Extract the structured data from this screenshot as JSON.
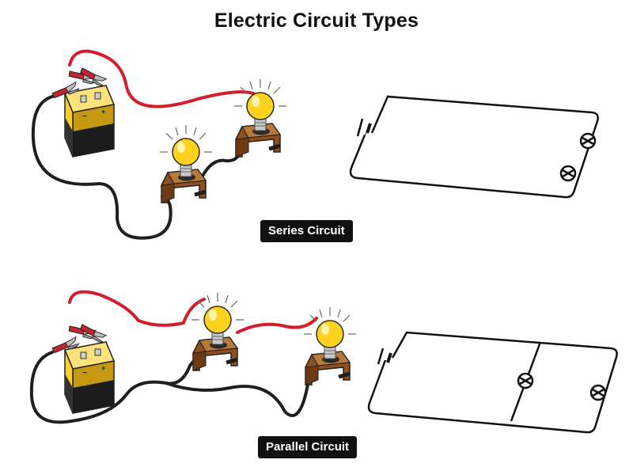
{
  "title": "Electric Circuit Types",
  "series_label": "Series Circuit",
  "parallel_label": "Parallel Circuit",
  "colors": {
    "wire_red": "#d21e2a",
    "wire_black": "#1f1f1f",
    "battery_yellow": "#f6cf2f",
    "bulb_yellow": "#ffd21f",
    "holder_brown": "#8f4f1f",
    "schematic": "#111111"
  }
}
